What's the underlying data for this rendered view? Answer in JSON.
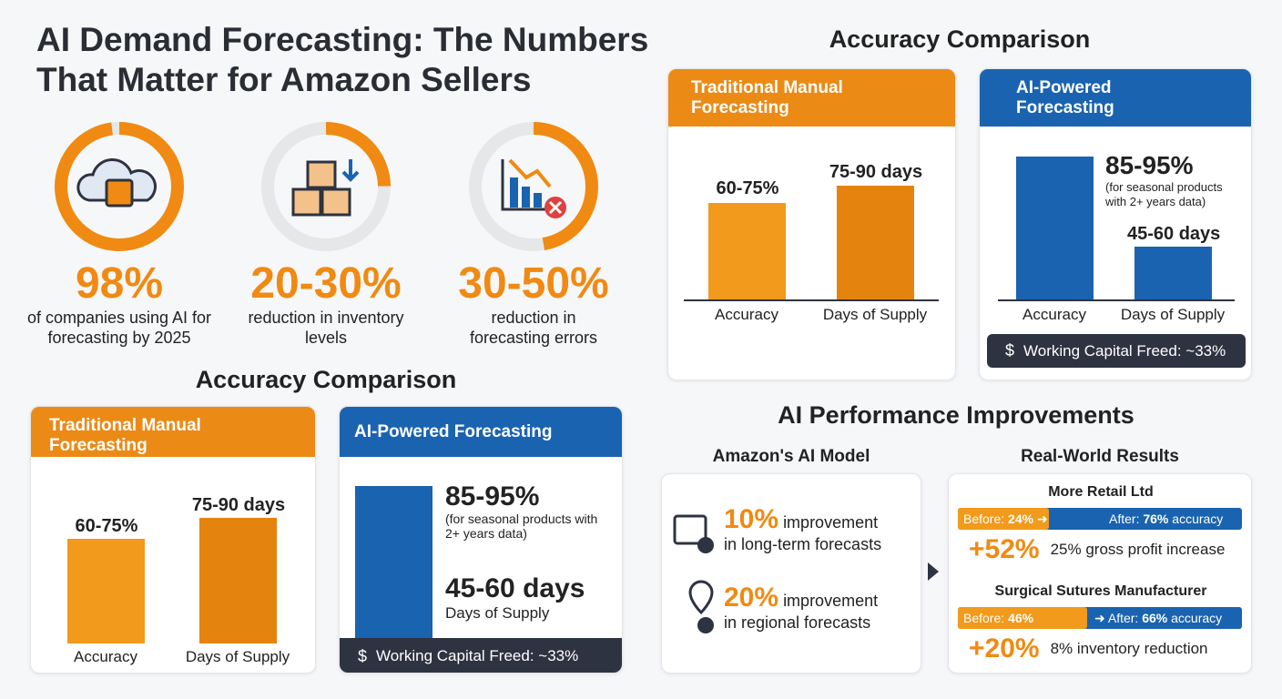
{
  "header": {
    "title": "AI Demand Forecasting: The Numbers That Matter for Amazon Sellers"
  },
  "stats": [
    {
      "value": "98%",
      "label": "of companies using AI for forecasting by 2025"
    },
    {
      "value": "20-30%",
      "label": "reduction in inventory levels"
    },
    {
      "value": "30-50%",
      "label": "reduction in forecasting errors"
    }
  ],
  "comparison_left": {
    "title": "Accuracy Comparison",
    "traditional": {
      "title": "Traditional Manual Forecasting",
      "accuracy": "60-75%",
      "accuracy_label": "Accuracy",
      "days": "75-90 days",
      "days_label": "Days of Supply"
    },
    "ai": {
      "title": "AI-Powered Forecasting",
      "accuracy": "85-95%",
      "note": "(for seasonal products with 2+ years data)",
      "days": "45-60 days",
      "days_label": "Days of Supply",
      "footer": "Working Capital Freed: ~33%"
    }
  },
  "comparison_right": {
    "title": "Accuracy Comparison",
    "traditional": {
      "title": "Traditional Manual Forecasting",
      "accuracy": "60-75%",
      "accuracy_label": "Accuracy",
      "days": "75-90 days",
      "days_label": "Days of Supply"
    },
    "ai": {
      "title": "AI-Powered Forecasting",
      "accuracy": "85-95%",
      "note": "(for seasonal products with 2+ years data)",
      "days": "45-60 days",
      "accuracy_label": "Accuracy",
      "days_label": "Days of Supply",
      "footer": "Working Capital Freed: ~33%"
    }
  },
  "improvements": {
    "title": "AI Performance Improvements",
    "amazon": {
      "title": "Amazon's AI Model",
      "items": [
        {
          "value": "10%",
          "text": "improvement",
          "detail": "in long-term forecasts"
        },
        {
          "value": "20%",
          "text": "improvement",
          "detail": "in regional forecasts"
        }
      ]
    },
    "results": {
      "title": "Real-World Results",
      "cases": [
        {
          "name": "More Retail Ltd",
          "before_label": "Before:",
          "before": "24%",
          "after_label": "After:",
          "after": "76%",
          "after_suffix": "accuracy",
          "gain": "+52%",
          "outcome": "25% gross profit increase"
        },
        {
          "name": "Surgical Sutures Manufacturer",
          "before_label": "Before:",
          "before": "46%",
          "after_label": "After:",
          "after": "66%",
          "after_suffix": "accuracy",
          "gain": "+20%",
          "outcome": "8% inventory reduction"
        }
      ]
    }
  }
}
